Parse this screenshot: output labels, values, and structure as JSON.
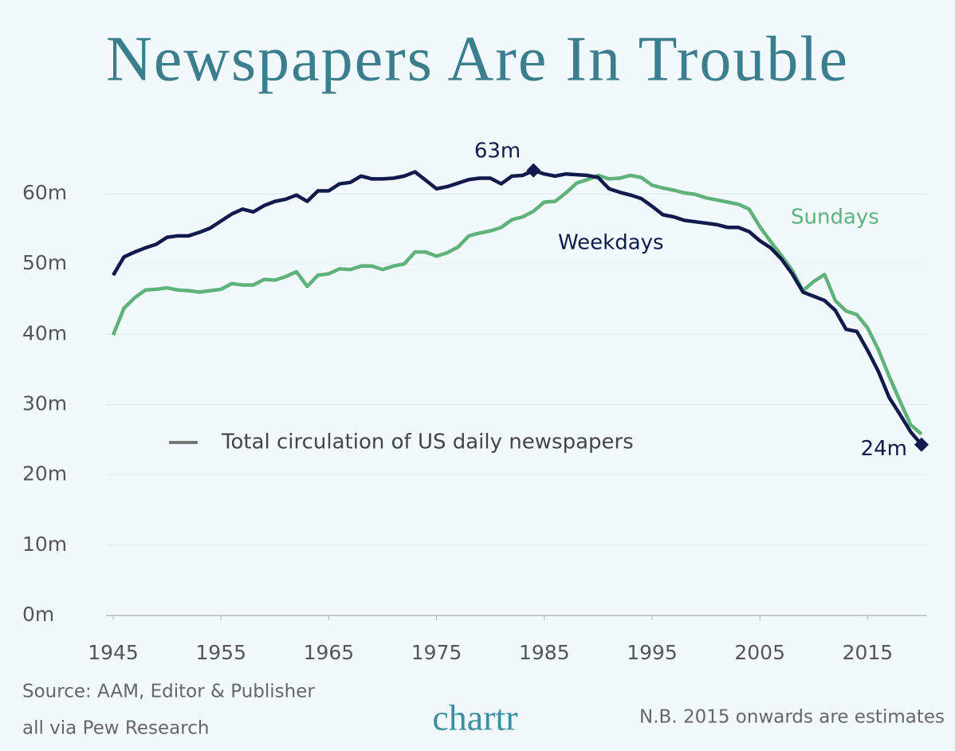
{
  "chart_data": {
    "type": "line",
    "title": "Newspapers Are In Trouble",
    "legend_note": "Total circulation of US daily newspapers",
    "x": [
      1945,
      1946,
      1947,
      1948,
      1949,
      1950,
      1951,
      1952,
      1953,
      1954,
      1955,
      1956,
      1957,
      1958,
      1959,
      1960,
      1961,
      1962,
      1963,
      1964,
      1965,
      1966,
      1967,
      1968,
      1969,
      1970,
      1971,
      1972,
      1973,
      1974,
      1975,
      1976,
      1977,
      1978,
      1979,
      1980,
      1981,
      1982,
      1983,
      1984,
      1985,
      1986,
      1987,
      1988,
      1989,
      1990,
      1991,
      1992,
      1993,
      1994,
      1995,
      1996,
      1997,
      1998,
      1999,
      2000,
      2001,
      2002,
      2003,
      2004,
      2005,
      2006,
      2007,
      2008,
      2009,
      2010,
      2011,
      2012,
      2013,
      2014,
      2015,
      2016,
      2017,
      2018,
      2019,
      2020
    ],
    "series": [
      {
        "name": "Weekdays",
        "color": "#101a4c",
        "values": [
          48.4,
          51.0,
          51.7,
          52.3,
          52.8,
          53.8,
          54.0,
          54.0,
          54.5,
          55.1,
          56.1,
          57.1,
          57.8,
          57.4,
          58.3,
          58.9,
          59.2,
          59.8,
          58.9,
          60.4,
          60.4,
          61.4,
          61.6,
          62.5,
          62.1,
          62.1,
          62.2,
          62.5,
          63.1,
          61.9,
          60.7,
          61.0,
          61.5,
          62.0,
          62.2,
          62.2,
          61.4,
          62.5,
          62.6,
          63.3,
          62.8,
          62.5,
          62.8,
          62.7,
          62.6,
          62.3,
          60.7,
          60.2,
          59.8,
          59.3,
          58.2,
          57.0,
          56.7,
          56.2,
          56.0,
          55.8,
          55.6,
          55.2,
          55.2,
          54.6,
          53.3,
          52.3,
          50.7,
          48.6,
          46.0,
          45.4,
          44.8,
          43.4,
          40.7,
          40.4,
          37.7,
          34.7,
          31.0,
          28.6,
          26.1,
          24.3
        ]
      },
      {
        "name": "Sundays",
        "color": "#5fb27a",
        "values": [
          39.9,
          43.7,
          45.2,
          46.3,
          46.4,
          46.6,
          46.3,
          46.2,
          46.0,
          46.2,
          46.4,
          47.2,
          47.0,
          47.0,
          47.8,
          47.7,
          48.2,
          48.9,
          46.8,
          48.4,
          48.6,
          49.3,
          49.2,
          49.7,
          49.7,
          49.2,
          49.7,
          50.0,
          51.7,
          51.7,
          51.1,
          51.6,
          52.4,
          54.0,
          54.4,
          54.7,
          55.2,
          56.3,
          56.7,
          57.5,
          58.8,
          58.9,
          60.1,
          61.5,
          62.0,
          62.6,
          62.1,
          62.2,
          62.6,
          62.3,
          61.2,
          60.8,
          60.5,
          60.1,
          59.9,
          59.4,
          59.1,
          58.8,
          58.5,
          57.8,
          55.3,
          53.2,
          51.2,
          49.1,
          46.2,
          47.5,
          48.5,
          44.8,
          43.3,
          42.8,
          40.9,
          37.8,
          34.0,
          30.5,
          27.1,
          25.8
        ]
      }
    ],
    "annotations": [
      {
        "label": "63m",
        "x": 1984,
        "y": 63.3
      },
      {
        "label": "24m",
        "x": 2020,
        "y": 24.3
      }
    ],
    "xlim": [
      1945,
      2020
    ],
    "xticks": [
      1945,
      1955,
      1965,
      1975,
      1985,
      1995,
      2005,
      2015
    ],
    "ylim": [
      0,
      66
    ],
    "yticks": [
      {
        "value": 0,
        "label": "0m"
      },
      {
        "value": 10,
        "label": "10m"
      },
      {
        "value": 20,
        "label": "20m"
      },
      {
        "value": 30,
        "label": "30m"
      },
      {
        "value": 40,
        "label": "40m"
      },
      {
        "value": 50,
        "label": "50m"
      },
      {
        "value": 60,
        "label": "60m"
      }
    ],
    "grid": true
  },
  "footer": {
    "source": [
      "Source: AAM, Editor & Publisher",
      "all via Pew Research"
    ],
    "logo": "chartr",
    "note": "N.B. 2015 onwards are estimates"
  }
}
